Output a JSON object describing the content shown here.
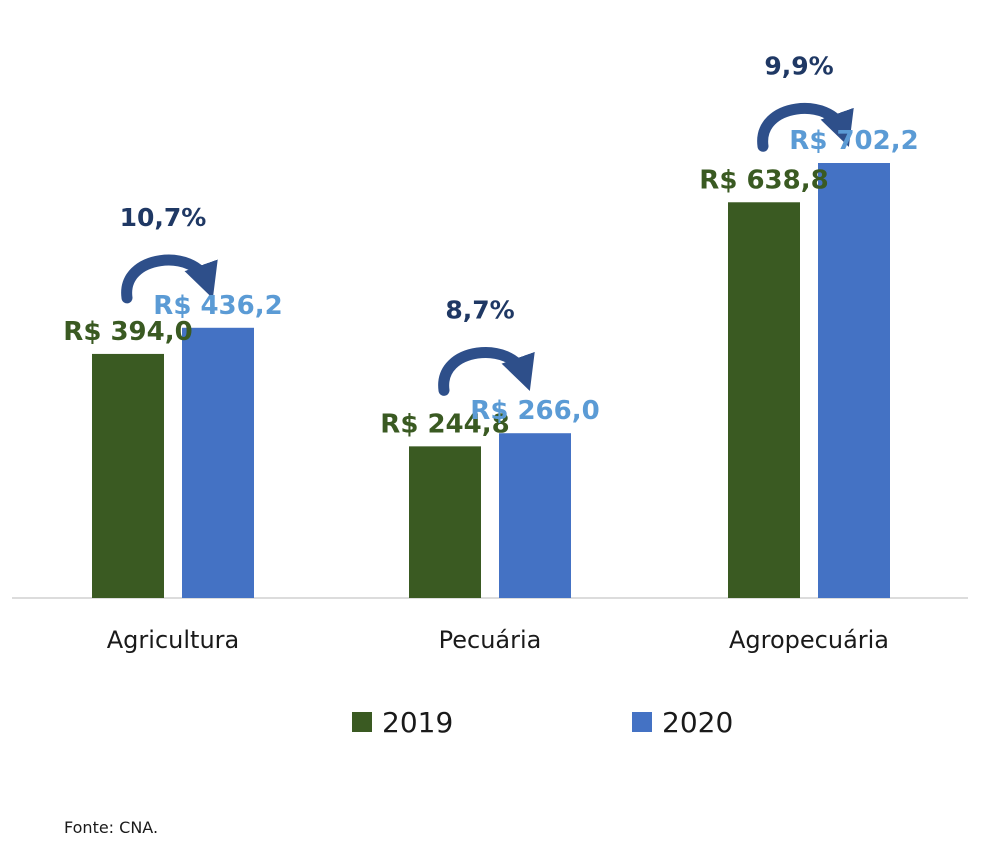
{
  "chart_data": {
    "type": "bar",
    "categories": [
      "Agricultura",
      "Pecuária",
      "Agropecuária"
    ],
    "series": [
      {
        "name": "2019",
        "color": "#3a5a22",
        "label_color": "#3a5a22",
        "values": [
          394.0,
          244.8,
          638.8
        ],
        "labels": [
          "R$ 394,0",
          "R$ 244,8",
          "R$ 638,8"
        ]
      },
      {
        "name": "2020",
        "color": "#4472c4",
        "label_color": "#5b9bd5",
        "values": [
          436.2,
          266.0,
          702.2
        ],
        "labels": [
          "R$ 436,2",
          "R$ 266,0",
          "R$ 702,2"
        ]
      }
    ],
    "growth_labels": [
      "10,7%",
      "8,7%",
      "9,9%"
    ],
    "growth_color": "#1f3864",
    "legend_position": "bottom",
    "ylim": [
      0,
      702.2
    ],
    "grid": false
  },
  "source": "Fonte: CNA."
}
